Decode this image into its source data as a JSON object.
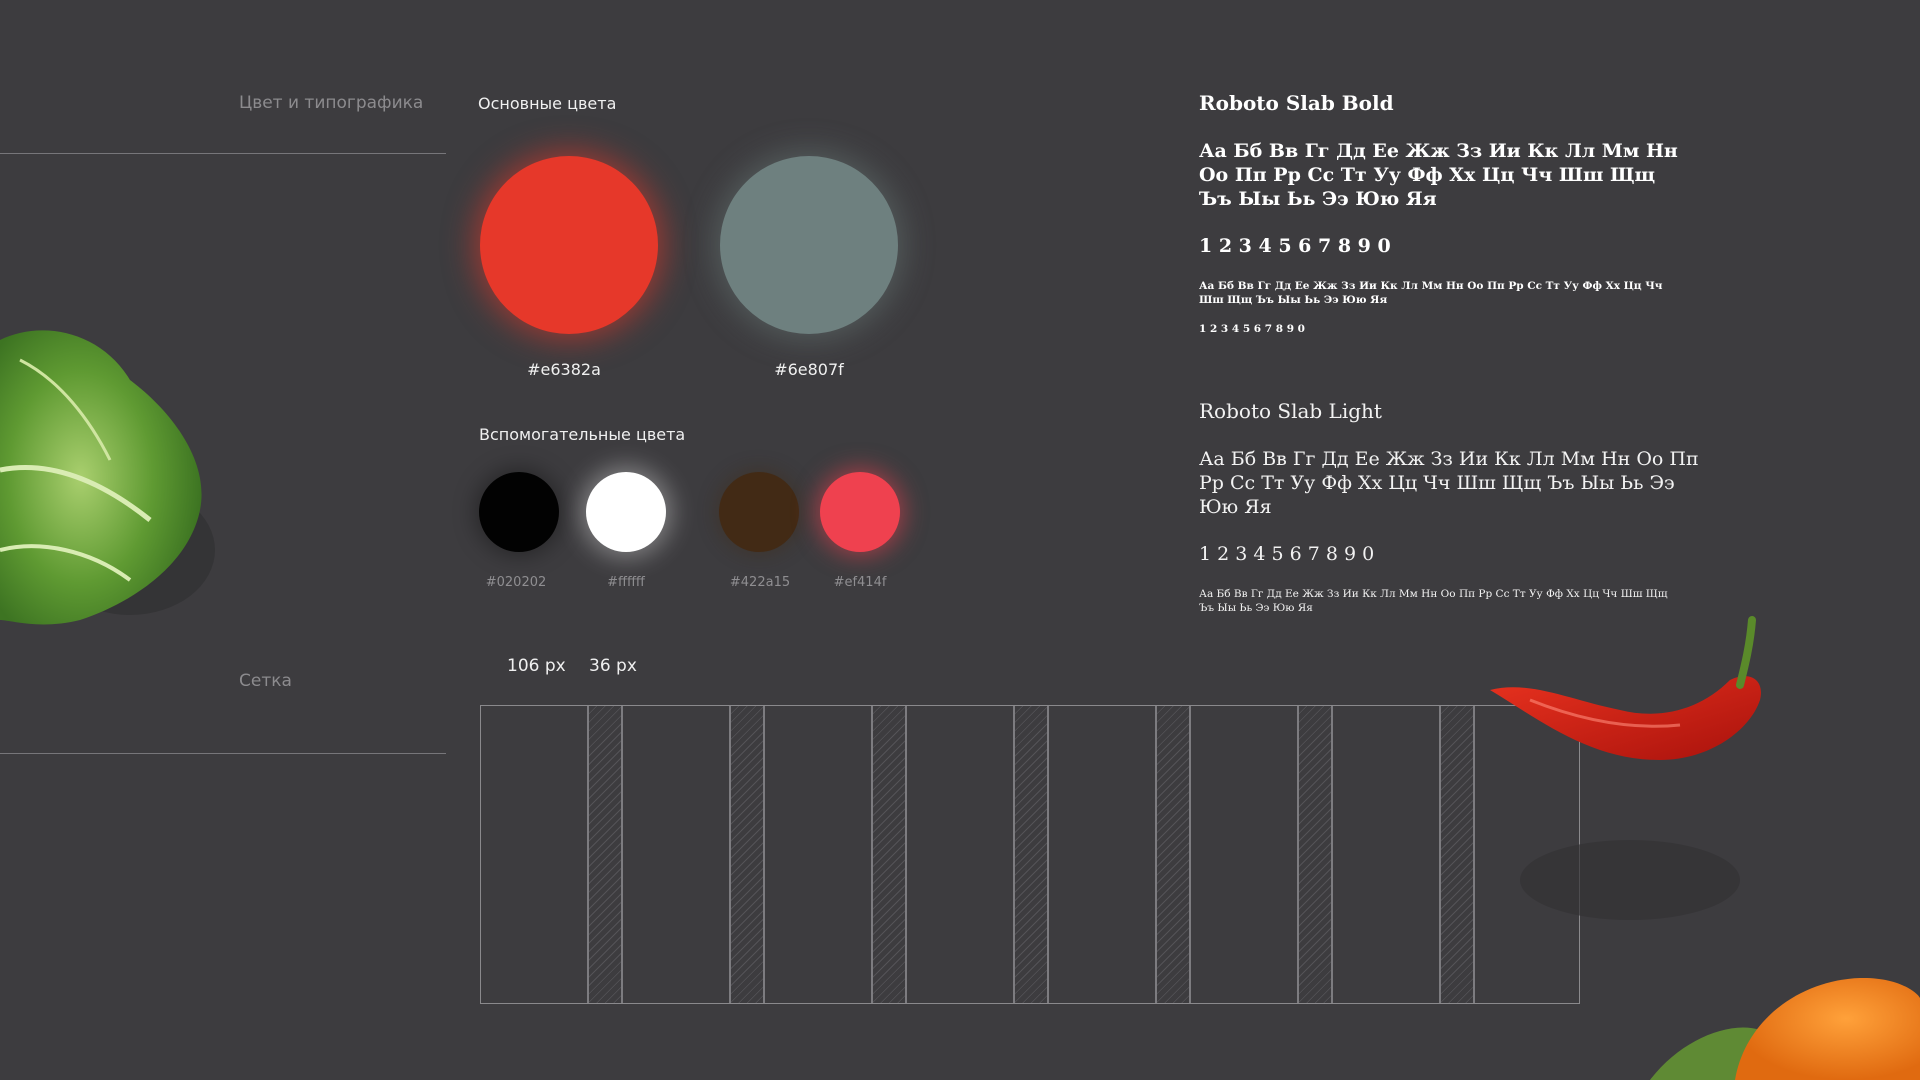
{
  "sidebar": {
    "color_typography_label": "Цвет и типографика",
    "grid_label": "Сетка"
  },
  "primary_colors": {
    "title": "Основные цвета",
    "swatches": [
      {
        "hex": "#e6382a",
        "color": "#e6382a"
      },
      {
        "hex": "#6e807f",
        "color": "#6e807f"
      }
    ]
  },
  "secondary_colors": {
    "title": "Вспомогательные цвета",
    "swatches": [
      {
        "hex": "#020202",
        "color": "#020202"
      },
      {
        "hex": "#ffffff",
        "color": "#ffffff"
      },
      {
        "hex": "#422a15",
        "color": "#422a15"
      },
      {
        "hex": "#ef414f",
        "color": "#ef414f"
      }
    ]
  },
  "grid": {
    "column_width_label": "106 px",
    "gutter_width_label": "36 px",
    "columns": 8
  },
  "typography": {
    "bold": {
      "title": "Roboto Slab Bold",
      "alphabet_large": "Аа Бб Вв Гг Дд Ее Жж Зз Ии Кк Лл Мм Нн Оо Пп Рр Сс Тт Уу Фф Хх Цц Чч Шш Щщ Ъъ Ыы Ьь Ээ Юю Яя",
      "digits_large": "1 2 3 4 5 6 7 8 9 0",
      "alphabet_small": "Аа Бб Вв Гг Дд Ее Жж Зз Ии Кк Лл Мм Нн Оо Пп Рр Сс Тт Уу Фф Хх Цц Чч Шш Щщ Ъъ Ыы Ьь Ээ Юю Яя",
      "digits_small": "1 2 3 4 5 6 7 8 9 0"
    },
    "light": {
      "title": "Roboto Slab Light",
      "alphabet_large": "Аа Бб Вв Гг Дд Ее Жж Зз Ии Кк Лл Мм Нн Оо Пп Рр Сс Тт Уу Фф Хх Цц Чч Шш Щщ Ъъ Ыы Ьь Ээ Юю Яя",
      "digits_large": "1 2 3 4 5 6 7 8 9 0",
      "alphabet_small": "Аа Бб Вв Гг Дд Ее Жж Зз Ии Кк Лл Мм Нн Оо Пп Рр Сс Тт Уу Фф Хх Цц Чч Шш Щщ Ъъ Ыы Ьь Ээ Юю Яя"
    }
  },
  "decorations": [
    "lettuce-image",
    "chili-pepper-image",
    "orange-image"
  ]
}
